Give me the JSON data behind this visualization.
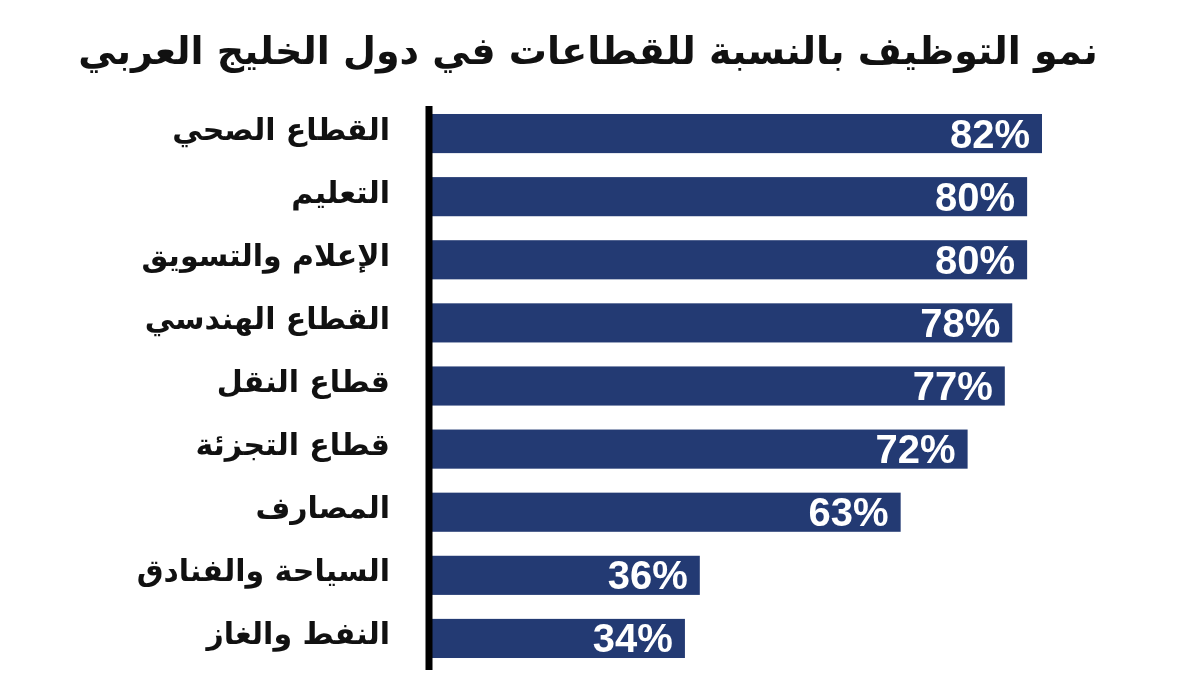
{
  "chart_data": {
    "type": "bar",
    "orientation": "horizontal",
    "title": "نمو التوظيف بالنسبة للقطاعات في دول الخليج العربي",
    "categories": [
      "القطاع الصحي",
      "التعليم",
      "الإعلام والتسويق",
      "القطاع الهندسي",
      "قطاع النقل",
      "قطاع التجزئة",
      "المصارف",
      "السياحة والفنادق",
      "النفط والغاز"
    ],
    "values": [
      82,
      80,
      80,
      78,
      77,
      72,
      63,
      36,
      34
    ],
    "value_labels": [
      "82%",
      "80%",
      "80%",
      "78%",
      "77%",
      "72%",
      "63%",
      "36%",
      "34%"
    ],
    "color": "#233a73",
    "tick_labels": "y"
  }
}
